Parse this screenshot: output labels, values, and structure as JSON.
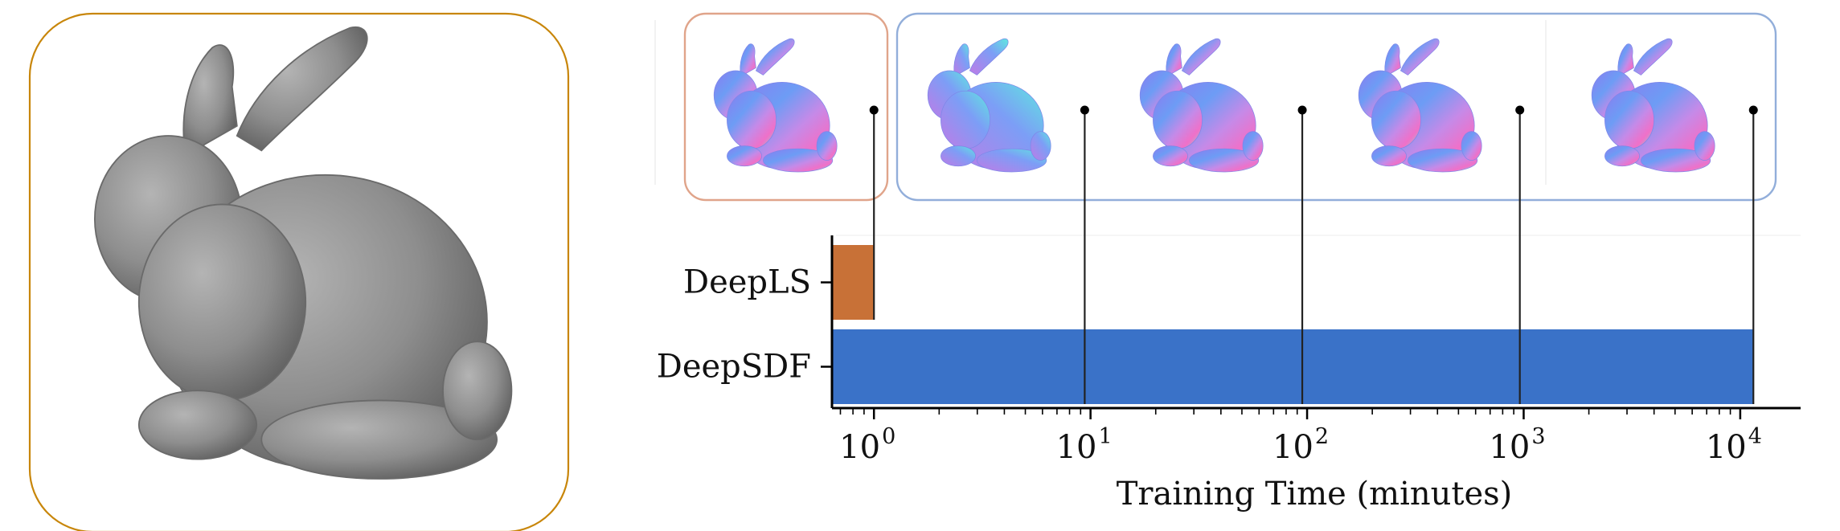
{
  "colors": {
    "deepls": "#C87137",
    "deepsdf": "#3A72C8",
    "reference_frame": "#C8860A",
    "deepls_frame": "#E0A48A",
    "deepsdf_frame": "#92AEDA",
    "bunny_gray": "#8C8C8C",
    "axis": "#000000"
  },
  "chart_data": {
    "type": "bar",
    "orientation": "horizontal",
    "x_scale": "log",
    "xlabel": "Training Time (minutes)",
    "ylabel": "",
    "xlim": [
      0.64,
      19000
    ],
    "categories": [
      "DeepLS",
      "DeepSDF"
    ],
    "values": [
      1,
      11500
    ],
    "x_ticks": [
      {
        "base": "10",
        "exp": "0",
        "value": 1
      },
      {
        "base": "10",
        "exp": "1",
        "value": 10
      },
      {
        "base": "10",
        "exp": "2",
        "value": 100
      },
      {
        "base": "10",
        "exp": "3",
        "value": 1000
      },
      {
        "base": "10",
        "exp": "4",
        "value": 10000
      }
    ],
    "snapshot_markers": [
      {
        "series": "DeepLS",
        "time": 1
      },
      {
        "series": "DeepSDF",
        "time": 9.4
      },
      {
        "series": "DeepSDF",
        "time": 95
      },
      {
        "series": "DeepSDF",
        "time": 960
      },
      {
        "series": "DeepSDF",
        "time": 11500
      }
    ]
  }
}
